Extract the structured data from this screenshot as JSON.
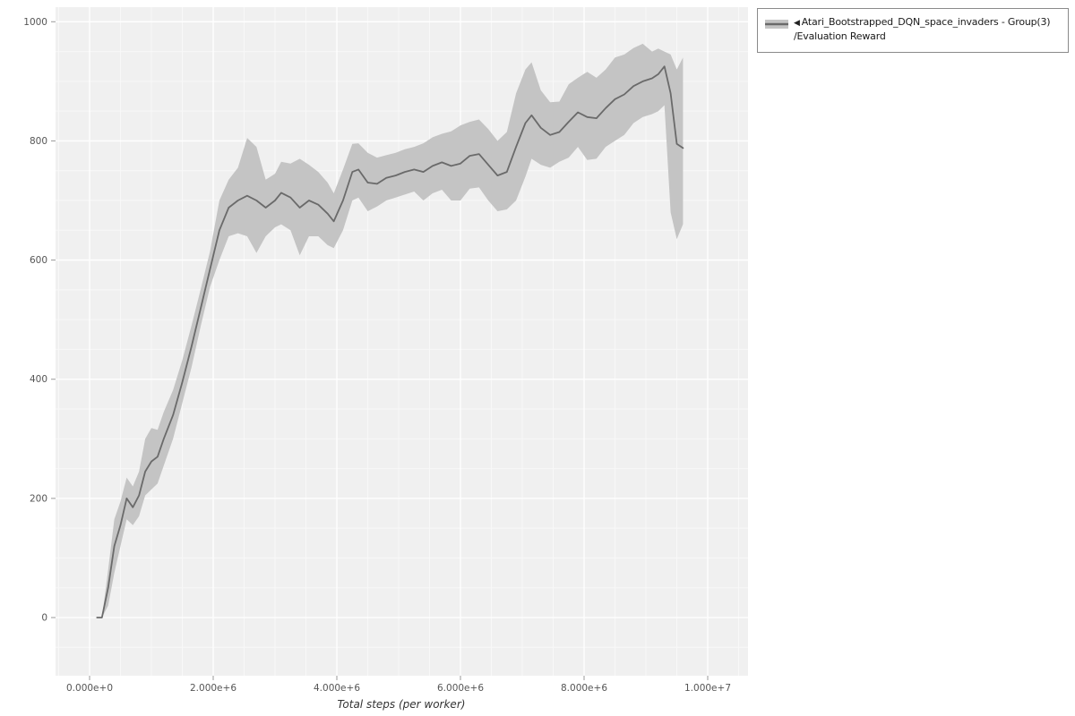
{
  "legend": {
    "collapse_icon": "◀",
    "series_label": "Atari_Bootstrapped_DQN_space_invaders - Group(3)",
    "series_sublabel": "/Evaluation Reward"
  },
  "chart_data": {
    "type": "line",
    "title": "",
    "xlabel": "Total steps (per worker)",
    "ylabel": "",
    "xlim": [
      0,
      10000000
    ],
    "ylim": [
      0,
      1000
    ],
    "grid": true,
    "legend_position": "top-right-outside",
    "x_ticks": [
      {
        "value": 0,
        "label": "0.000e+0"
      },
      {
        "value": 2000000,
        "label": "2.000e+6"
      },
      {
        "value": 4000000,
        "label": "4.000e+6"
      },
      {
        "value": 6000000,
        "label": "6.000e+6"
      },
      {
        "value": 8000000,
        "label": "8.000e+6"
      },
      {
        "value": 10000000,
        "label": "1.000e+7"
      }
    ],
    "y_ticks": [
      {
        "value": 0,
        "label": "0"
      },
      {
        "value": 200,
        "label": "200"
      },
      {
        "value": 400,
        "label": "400"
      },
      {
        "value": 600,
        "label": "600"
      },
      {
        "value": 800,
        "label": "800"
      },
      {
        "value": 1000,
        "label": "1000"
      }
    ],
    "colors": {
      "plot_bg": "#f0f0f0",
      "major_grid": "#ffffff",
      "minor_grid": "#f8f8f8",
      "line": "#6a6a6a",
      "band": "#c4c4c4",
      "tick": "#999999"
    },
    "series": [
      {
        "name": "Atari_Bootstrapped_DQN_space_invaders - Group(3)/Evaluation Reward",
        "x": [
          120000,
          200000,
          300000,
          400000,
          500000,
          600000,
          700000,
          800000,
          900000,
          1000000,
          1100000,
          1200000,
          1350000,
          1500000,
          1650000,
          1800000,
          1950000,
          2100000,
          2250000,
          2400000,
          2550000,
          2700000,
          2850000,
          3000000,
          3100000,
          3250000,
          3400000,
          3550000,
          3700000,
          3850000,
          3950000,
          4100000,
          4250000,
          4350000,
          4500000,
          4650000,
          4800000,
          4950000,
          5100000,
          5250000,
          5400000,
          5550000,
          5700000,
          5850000,
          6000000,
          6150000,
          6300000,
          6450000,
          6600000,
          6750000,
          6900000,
          7050000,
          7150000,
          7300000,
          7450000,
          7600000,
          7750000,
          7900000,
          8050000,
          8200000,
          8350000,
          8500000,
          8650000,
          8800000,
          8950000,
          9100000,
          9200000,
          9300000,
          9400000,
          9500000,
          9600000
        ],
        "mean": [
          0,
          0,
          50,
          120,
          155,
          200,
          185,
          205,
          245,
          262,
          270,
          300,
          340,
          395,
          455,
          520,
          585,
          650,
          688,
          700,
          708,
          700,
          688,
          700,
          713,
          705,
          688,
          700,
          693,
          678,
          665,
          700,
          748,
          752,
          730,
          728,
          738,
          742,
          748,
          752,
          748,
          758,
          764,
          758,
          762,
          775,
          778,
          760,
          742,
          748,
          790,
          830,
          843,
          822,
          810,
          815,
          832,
          848,
          840,
          838,
          855,
          870,
          878,
          892,
          900,
          905,
          912,
          925,
          880,
          795,
          788
        ],
        "lower": [
          0,
          0,
          20,
          75,
          120,
          165,
          155,
          170,
          205,
          215,
          225,
          255,
          300,
          360,
          420,
          490,
          555,
          600,
          640,
          645,
          640,
          612,
          640,
          655,
          660,
          650,
          608,
          640,
          640,
          625,
          620,
          650,
          700,
          705,
          682,
          690,
          700,
          705,
          710,
          715,
          700,
          712,
          718,
          700,
          700,
          720,
          722,
          700,
          682,
          685,
          700,
          740,
          770,
          760,
          755,
          765,
          772,
          790,
          768,
          770,
          790,
          800,
          810,
          830,
          840,
          845,
          850,
          860,
          680,
          635,
          660
        ],
        "upper": [
          0,
          0,
          80,
          165,
          195,
          235,
          220,
          245,
          300,
          318,
          315,
          345,
          382,
          432,
          490,
          552,
          615,
          700,
          735,
          755,
          805,
          790,
          735,
          745,
          765,
          762,
          770,
          760,
          748,
          730,
          712,
          752,
          795,
          796,
          780,
          772,
          776,
          780,
          786,
          790,
          796,
          806,
          812,
          816,
          826,
          832,
          836,
          820,
          800,
          815,
          880,
          920,
          932,
          885,
          865,
          866,
          895,
          906,
          916,
          906,
          920,
          940,
          945,
          956,
          963,
          950,
          955,
          950,
          945,
          920,
          940
        ]
      }
    ]
  }
}
